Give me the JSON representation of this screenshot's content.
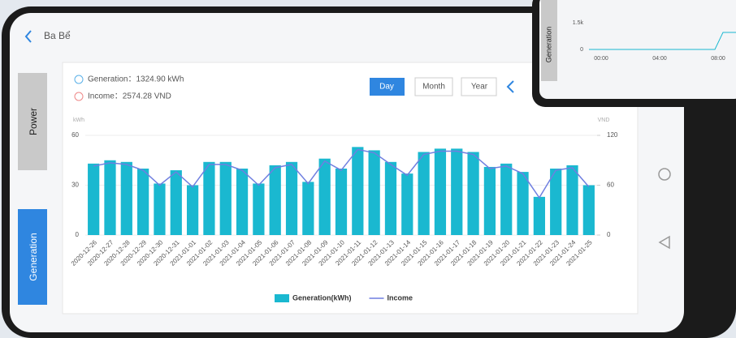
{
  "app": {
    "location": "Ba Bể",
    "tabs": [
      "Power",
      "Generation"
    ],
    "summary": {
      "generation": "Generation：1324.90 kWh",
      "income": "Income：2574.28 VND"
    },
    "buttons": [
      "Day",
      "Month",
      "Year"
    ]
  },
  "inset": {
    "axis_title": "Generation",
    "yticks": [
      "1.5k",
      "0"
    ],
    "xticks": [
      "00:00",
      "04:00",
      "08:00"
    ]
  },
  "chart_data": {
    "type": "bar",
    "ylabel": "kWh",
    "y2label": "VND",
    "categories": [
      "2020-12-26",
      "2020-12-27",
      "2020-12-28",
      "2020-12-29",
      "2020-12-30",
      "2020-12-31",
      "2021-01-01",
      "2021-01-02",
      "2021-01-03",
      "2021-01-04",
      "2021-01-05",
      "2021-01-06",
      "2021-01-07",
      "2021-01-08",
      "2021-01-09",
      "2021-01-10",
      "2021-01-11",
      "2021-01-12",
      "2021-01-13",
      "2021-01-14",
      "2021-01-15",
      "2021-01-16",
      "2021-01-17",
      "2021-01-18",
      "2021-01-19",
      "2021-01-20",
      "2021-01-21",
      "2021-01-22",
      "2021-01-23",
      "2021-01-24",
      "2021-01-25"
    ],
    "series": [
      {
        "name": "Generation(kWh)",
        "type": "bar",
        "color": "#1ab8d0",
        "values": [
          43,
          45,
          44,
          40,
          31,
          39,
          30,
          44,
          44,
          40,
          31,
          42,
          44,
          32,
          46,
          40,
          53,
          51,
          44,
          37,
          50,
          52,
          52,
          50,
          41,
          43,
          38,
          23,
          40,
          42,
          30
        ]
      },
      {
        "name": "Income",
        "type": "line",
        "axis": "y2",
        "color": "#6f7fe0",
        "values": [
          83,
          87,
          85,
          78,
          60,
          76,
          58,
          85,
          85,
          78,
          60,
          81,
          85,
          62,
          89,
          78,
          103,
          99,
          85,
          72,
          97,
          101,
          101,
          97,
          80,
          83,
          74,
          45,
          78,
          81,
          58
        ]
      }
    ],
    "ylim": [
      0,
      60
    ],
    "yticks": [
      0,
      30,
      60
    ],
    "y2lim": [
      0,
      120
    ],
    "y2ticks": [
      0,
      60,
      120
    ],
    "grid": true,
    "legend": "bottom"
  }
}
